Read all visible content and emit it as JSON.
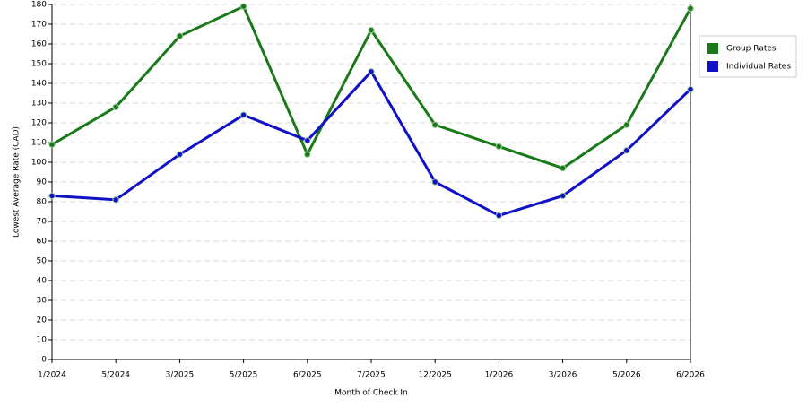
{
  "chart_data": {
    "type": "line",
    "x_label": "Month of Check In",
    "y_label": "Lowest Average Rate (CAD)",
    "categories": [
      "1/2024",
      "5/2024",
      "3/2025",
      "5/2025",
      "6/2025",
      "7/2025",
      "12/2025",
      "1/2026",
      "3/2026",
      "5/2026",
      "6/2026"
    ],
    "series": [
      {
        "name": "Group Rates",
        "color": "#1a7a1a",
        "values": [
          109,
          128,
          164,
          179,
          104,
          167,
          119,
          108,
          97,
          119,
          178
        ]
      },
      {
        "name": "Individual Rates",
        "color": "#1010c8",
        "values": [
          83,
          81,
          104,
          124,
          111,
          146,
          90,
          73,
          83,
          106,
          137
        ]
      }
    ],
    "ylim": [
      0,
      180
    ],
    "yticks": [
      0,
      10,
      20,
      30,
      40,
      50,
      60,
      70,
      80,
      90,
      100,
      110,
      120,
      130,
      140,
      150,
      160,
      170,
      180
    ],
    "grid": true
  }
}
